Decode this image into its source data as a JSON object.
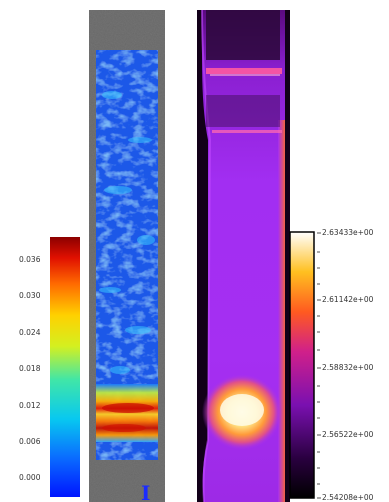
{
  "left_panel": {
    "scale_ticks": [
      "0.036",
      "0.030",
      "0.024",
      "0.018",
      "0.012",
      "0.006",
      "0.000"
    ],
    "axis_glyph": "I"
  },
  "right_panel": {
    "scale_ticks": [
      "2.63433e+00",
      "2.61142e+00",
      "2.58832e+00",
      "2.56522e+00",
      "2.54208e+00"
    ]
  },
  "colors": {
    "specimen_gray": "#6e6e6e",
    "jet_low": "#0a2cff",
    "jet_high": "#9a0000",
    "thermal_bg": "#120018",
    "thermal_body": "#a42df0",
    "thermal_hot": "#fff8c8"
  }
}
